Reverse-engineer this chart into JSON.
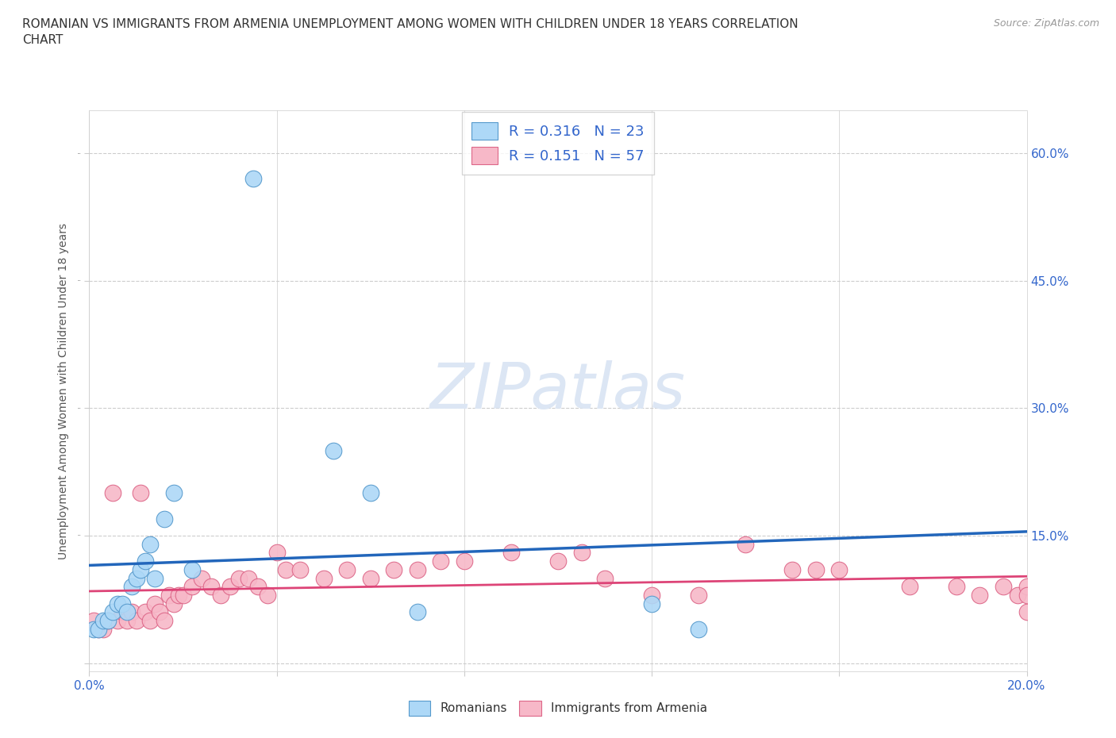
{
  "title": "ROMANIAN VS IMMIGRANTS FROM ARMENIA UNEMPLOYMENT AMONG WOMEN WITH CHILDREN UNDER 18 YEARS CORRELATION\nCHART",
  "source": "Source: ZipAtlas.com",
  "ylabel": "Unemployment Among Women with Children Under 18 years",
  "xlim": [
    0.0,
    0.2
  ],
  "ylim": [
    -0.01,
    0.65
  ],
  "x_ticks": [
    0.0,
    0.04,
    0.08,
    0.12,
    0.16,
    0.2
  ],
  "x_tick_labels": [
    "0.0%",
    "",
    "",
    "",
    "",
    "20.0%"
  ],
  "y_ticks": [
    0.0,
    0.15,
    0.3,
    0.45,
    0.6
  ],
  "y_tick_labels": [
    "",
    "15.0%",
    "30.0%",
    "45.0%",
    "60.0%"
  ],
  "romanian_color": "#add8f7",
  "armenian_color": "#f7b8c8",
  "romanian_edge": "#5599cc",
  "armenian_edge": "#dd6688",
  "background_color": "#ffffff",
  "watermark": "ZIPatlas",
  "watermark_color": "#dce6f4",
  "legend_r1": "R = 0.316",
  "legend_n1": "N = 23",
  "legend_r2": "R = 0.151",
  "legend_n2": "N = 57",
  "trend_color_romanian": "#2266bb",
  "trend_color_armenian": "#dd4477",
  "grid_color": "#cccccc",
  "romanian_x": [
    0.001,
    0.002,
    0.003,
    0.004,
    0.005,
    0.006,
    0.007,
    0.008,
    0.009,
    0.01,
    0.011,
    0.012,
    0.013,
    0.014,
    0.016,
    0.018,
    0.022,
    0.035,
    0.052,
    0.06,
    0.07,
    0.12,
    0.13
  ],
  "romanian_y": [
    0.04,
    0.04,
    0.05,
    0.05,
    0.06,
    0.07,
    0.07,
    0.06,
    0.09,
    0.1,
    0.11,
    0.12,
    0.14,
    0.1,
    0.17,
    0.2,
    0.11,
    0.57,
    0.25,
    0.2,
    0.06,
    0.07,
    0.04
  ],
  "armenian_x": [
    0.001,
    0.002,
    0.003,
    0.004,
    0.005,
    0.006,
    0.007,
    0.008,
    0.009,
    0.01,
    0.011,
    0.012,
    0.013,
    0.014,
    0.015,
    0.016,
    0.017,
    0.018,
    0.019,
    0.02,
    0.022,
    0.024,
    0.026,
    0.028,
    0.03,
    0.032,
    0.034,
    0.036,
    0.038,
    0.04,
    0.042,
    0.045,
    0.05,
    0.055,
    0.06,
    0.065,
    0.07,
    0.075,
    0.08,
    0.09,
    0.1,
    0.105,
    0.11,
    0.12,
    0.13,
    0.14,
    0.15,
    0.155,
    0.16,
    0.175,
    0.185,
    0.19,
    0.195,
    0.198,
    0.2,
    0.2,
    0.2
  ],
  "armenian_y": [
    0.05,
    0.04,
    0.04,
    0.05,
    0.2,
    0.05,
    0.06,
    0.05,
    0.06,
    0.05,
    0.2,
    0.06,
    0.05,
    0.07,
    0.06,
    0.05,
    0.08,
    0.07,
    0.08,
    0.08,
    0.09,
    0.1,
    0.09,
    0.08,
    0.09,
    0.1,
    0.1,
    0.09,
    0.08,
    0.13,
    0.11,
    0.11,
    0.1,
    0.11,
    0.1,
    0.11,
    0.11,
    0.12,
    0.12,
    0.13,
    0.12,
    0.13,
    0.1,
    0.08,
    0.08,
    0.14,
    0.11,
    0.11,
    0.11,
    0.09,
    0.09,
    0.08,
    0.09,
    0.08,
    0.06,
    0.09,
    0.08
  ]
}
